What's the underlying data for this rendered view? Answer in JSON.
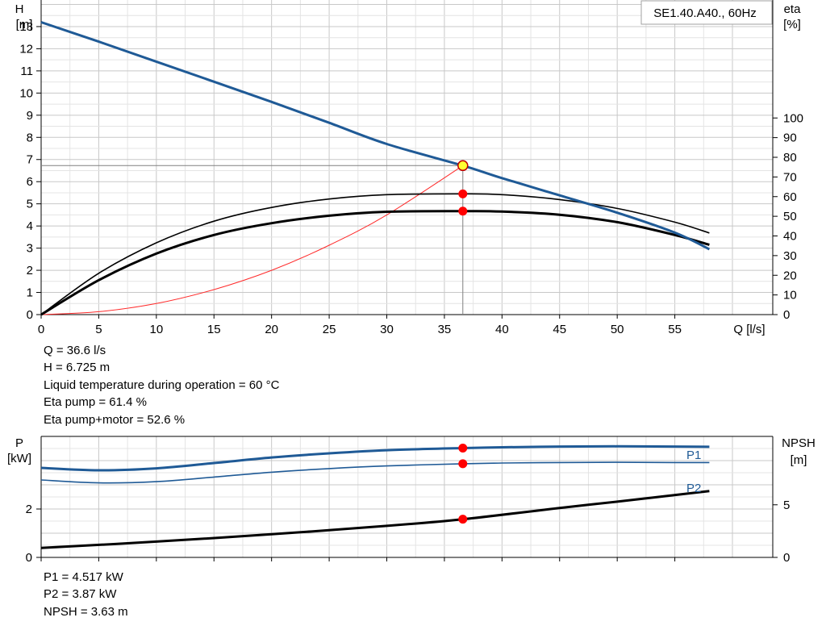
{
  "chart_data": [
    {
      "type": "line",
      "title": "SE1.40.A40., 60Hz",
      "xlabel": "Q [l/s]",
      "ylabel_left": [
        "H",
        "[m]"
      ],
      "ylabel_right": [
        "eta",
        "[%]"
      ],
      "xlim": [
        0,
        63.5
      ],
      "ylim_left": [
        0,
        14.2
      ],
      "ylim_right": [
        0,
        160
      ],
      "x_ticks": [
        0,
        5,
        10,
        15,
        20,
        25,
        30,
        35,
        40,
        45,
        50,
        55
      ],
      "y_ticks_left": [
        0,
        1,
        2,
        3,
        4,
        5,
        6,
        7,
        8,
        9,
        10,
        11,
        12,
        13
      ],
      "y_ticks_right": [
        0,
        10,
        20,
        30,
        40,
        50,
        60,
        70,
        80,
        90,
        100
      ],
      "grid": true,
      "series": [
        {
          "key": "h",
          "axis": "left",
          "color": "#1f5a96",
          "width": 3,
          "x": [
            0,
            5,
            10,
            15,
            20,
            25,
            30,
            36.6,
            40,
            45,
            50,
            55,
            58
          ],
          "values": [
            13.2,
            12.32,
            11.42,
            10.51,
            9.6,
            8.66,
            7.7,
            6.725,
            6.16,
            5.38,
            4.6,
            3.7,
            2.95
          ]
        },
        {
          "key": "eta_pump",
          "axis": "right",
          "color": "#000000",
          "width": 1.6,
          "x": [
            0,
            5,
            10,
            15,
            20,
            25,
            30,
            36.6,
            40,
            45,
            50,
            55,
            58
          ],
          "values": [
            0,
            21,
            36.5,
            47.5,
            54.5,
            58.8,
            61,
            61.4,
            61,
            58.5,
            54,
            47,
            41.5
          ]
        },
        {
          "key": "eta_total",
          "axis": "right",
          "color": "#000000",
          "width": 3,
          "x": [
            0,
            5,
            10,
            15,
            20,
            25,
            30,
            36.6,
            40,
            45,
            50,
            55,
            58
          ],
          "values": [
            0,
            17.5,
            31,
            40.5,
            46.5,
            50.3,
            52.3,
            52.6,
            52.4,
            50.8,
            47,
            40.5,
            35.5
          ]
        },
        {
          "key": "system",
          "axis": "left",
          "color": "#ff2a2a",
          "width": 1,
          "x": [
            0,
            5,
            10,
            15,
            20,
            25,
            30,
            36.6
          ],
          "values": [
            0,
            0.13,
            0.5,
            1.13,
            2.0,
            3.13,
            4.5,
            6.725
          ]
        }
      ],
      "operating_point": {
        "q": 36.6,
        "h": 6.725,
        "eta_pump": 61.4,
        "eta_total": 52.6
      }
    },
    {
      "type": "line",
      "xlim": [
        0,
        63.5
      ],
      "ylabel_left": [
        "P",
        "[kW]"
      ],
      "ylabel_right": [
        "NPSH",
        "[m]"
      ],
      "ylim_left": [
        0,
        5
      ],
      "ylim_right": [
        0,
        11.5
      ],
      "y_ticks_left": [
        0,
        2
      ],
      "y_ticks_right": [
        0,
        5
      ],
      "grid": true,
      "series": [
        {
          "key": "p1",
          "name": "P1",
          "axis": "left",
          "color": "#1f5a96",
          "width": 3,
          "x": [
            0,
            5,
            10,
            15,
            20,
            25,
            30,
            36.6,
            40,
            45,
            50,
            55,
            58
          ],
          "values": [
            3.7,
            3.6,
            3.68,
            3.9,
            4.13,
            4.3,
            4.43,
            4.517,
            4.55,
            4.58,
            4.59,
            4.58,
            4.57
          ]
        },
        {
          "key": "p2",
          "name": "P2",
          "axis": "left",
          "color": "#1f5a96",
          "width": 1.6,
          "x": [
            0,
            5,
            10,
            15,
            20,
            25,
            30,
            36.6,
            40,
            45,
            50,
            55,
            58
          ],
          "values": [
            3.2,
            3.08,
            3.13,
            3.32,
            3.52,
            3.67,
            3.78,
            3.87,
            3.9,
            3.92,
            3.93,
            3.92,
            3.92
          ]
        },
        {
          "key": "npsh",
          "axis": "right",
          "color": "#000000",
          "width": 3,
          "x": [
            0,
            10,
            20,
            30,
            36.6,
            45,
            50,
            58
          ],
          "values": [
            0.9,
            1.5,
            2.2,
            3.0,
            3.63,
            4.7,
            5.3,
            6.3
          ]
        }
      ],
      "operating_point": {
        "q": 36.6,
        "p1": 4.517,
        "p2": 3.87,
        "npsh": 3.63
      }
    }
  ],
  "info_top": [
    "Q = 36.6 l/s",
    "H = 6.725 m",
    "Liquid temperature during operation = 60 °C",
    "Eta pump = 61.4 %",
    "Eta pump+motor = 52.6 %"
  ],
  "info_bottom": [
    "P1 = 4.517 kW",
    "P2 = 3.87 kW",
    "NPSH = 3.63 m"
  ]
}
